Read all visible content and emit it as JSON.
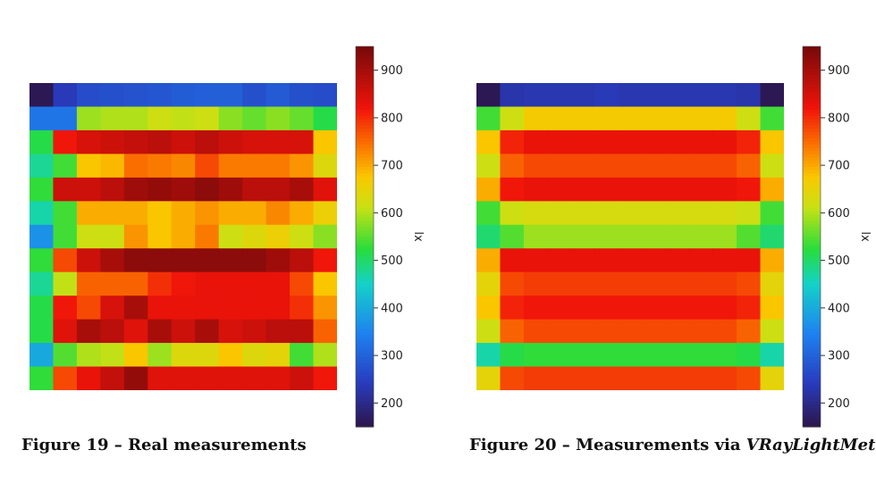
{
  "chart_data": [
    {
      "type": "heatmap",
      "caption": "Figure 19 – Real measurements",
      "colorbar_label": "lx",
      "colorbar_ticks": [
        200,
        300,
        400,
        500,
        600,
        700,
        800,
        900
      ],
      "vmin": 150,
      "vmax": 950,
      "grid": [
        [
          160,
          240,
          270,
          275,
          280,
          285,
          295,
          300,
          300,
          275,
          290,
          275,
          270
        ],
        [
          330,
          330,
          590,
          600,
          600,
          620,
          610,
          620,
          580,
          560,
          580,
          560,
          520
        ],
        [
          520,
          820,
          850,
          860,
          870,
          880,
          860,
          880,
          860,
          850,
          850,
          850,
          680
        ],
        [
          480,
          540,
          680,
          690,
          750,
          740,
          730,
          780,
          740,
          740,
          740,
          720,
          640
        ],
        [
          530,
          860,
          860,
          880,
          910,
          920,
          910,
          930,
          910,
          880,
          880,
          900,
          840
        ],
        [
          470,
          540,
          700,
          700,
          700,
          680,
          700,
          720,
          700,
          700,
          730,
          700,
          660
        ],
        [
          370,
          540,
          620,
          620,
          720,
          680,
          700,
          740,
          620,
          640,
          660,
          620,
          580
        ],
        [
          530,
          780,
          860,
          900,
          930,
          930,
          930,
          930,
          930,
          930,
          910,
          880,
          820
        ],
        [
          480,
          610,
          760,
          760,
          760,
          800,
          820,
          830,
          830,
          830,
          830,
          780,
          680
        ],
        [
          520,
          820,
          780,
          850,
          900,
          830,
          830,
          830,
          830,
          830,
          830,
          800,
          720
        ],
        [
          520,
          840,
          900,
          880,
          840,
          900,
          860,
          900,
          850,
          860,
          880,
          880,
          760
        ],
        [
          400,
          550,
          600,
          610,
          680,
          590,
          640,
          640,
          680,
          640,
          650,
          540,
          600
        ],
        [
          530,
          780,
          830,
          870,
          920,
          840,
          840,
          840,
          840,
          840,
          840,
          860,
          820
        ]
      ]
    },
    {
      "type": "heatmap",
      "caption_prefix": "Figure 20 – Measurements via ",
      "caption_italic": "VRayLightMeter",
      "colorbar_label": "lx",
      "colorbar_ticks": [
        200,
        300,
        400,
        500,
        600,
        700,
        800,
        900
      ],
      "vmin": 150,
      "vmax": 950,
      "grid": [
        [
          160,
          230,
          235,
          235,
          235,
          240,
          235,
          235,
          235,
          235,
          235,
          230,
          160
        ],
        [
          540,
          620,
          670,
          670,
          670,
          670,
          670,
          670,
          670,
          670,
          670,
          620,
          540
        ],
        [
          680,
          810,
          830,
          830,
          830,
          830,
          830,
          830,
          830,
          830,
          830,
          810,
          680
        ],
        [
          620,
          760,
          780,
          780,
          780,
          780,
          780,
          780,
          780,
          780,
          780,
          760,
          620
        ],
        [
          700,
          820,
          830,
          830,
          830,
          830,
          830,
          830,
          830,
          830,
          830,
          820,
          700
        ],
        [
          540,
          620,
          630,
          630,
          630,
          630,
          630,
          630,
          630,
          630,
          630,
          620,
          540
        ],
        [
          500,
          550,
          590,
          590,
          590,
          590,
          590,
          590,
          590,
          590,
          590,
          550,
          500
        ],
        [
          700,
          830,
          830,
          830,
          830,
          830,
          830,
          830,
          830,
          830,
          830,
          830,
          700
        ],
        [
          650,
          780,
          790,
          790,
          790,
          790,
          790,
          790,
          790,
          790,
          790,
          780,
          650
        ],
        [
          680,
          810,
          820,
          820,
          820,
          820,
          820,
          820,
          820,
          820,
          820,
          810,
          680
        ],
        [
          620,
          760,
          780,
          780,
          780,
          780,
          780,
          780,
          780,
          780,
          780,
          760,
          620
        ],
        [
          470,
          520,
          530,
          530,
          530,
          530,
          530,
          530,
          530,
          530,
          530,
          520,
          470
        ],
        [
          650,
          780,
          790,
          790,
          790,
          790,
          790,
          790,
          790,
          790,
          790,
          780,
          650
        ]
      ]
    }
  ]
}
